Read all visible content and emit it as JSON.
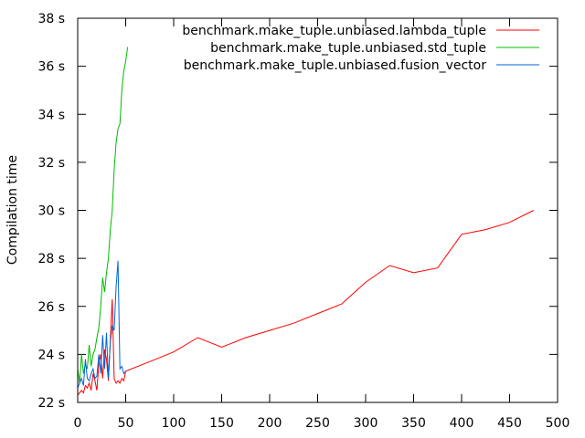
{
  "chart_data": {
    "type": "line",
    "title": "",
    "xlabel": "",
    "ylabel": "Compilation time",
    "xlim": [
      0,
      500
    ],
    "ylim": [
      22,
      38
    ],
    "xticks": [
      0,
      50,
      100,
      150,
      200,
      250,
      300,
      350,
      400,
      450,
      500
    ],
    "yticks": [
      22,
      24,
      26,
      28,
      30,
      32,
      34,
      36,
      38
    ],
    "xtick_labels": [
      "0",
      "50",
      "100",
      "150",
      "200",
      "250",
      "300",
      "350",
      "400",
      "450",
      "500"
    ],
    "ytick_labels": [
      "22 s",
      "24 s",
      "26 s",
      "28 s",
      "30 s",
      "32 s",
      "34 s",
      "36 s",
      "38 s"
    ],
    "grid": false,
    "legend_position": "top-right",
    "series": [
      {
        "name": "benchmark.make_tuple.unbiased.lambda_tuple",
        "color": "#ff0000",
        "x": [
          0,
          2,
          4,
          6,
          8,
          10,
          12,
          14,
          16,
          18,
          20,
          22,
          24,
          26,
          28,
          30,
          32,
          34,
          36,
          38,
          40,
          42,
          44,
          46,
          48,
          50,
          75,
          100,
          125,
          150,
          175,
          200,
          225,
          250,
          275,
          300,
          325,
          350,
          375,
          400,
          425,
          450,
          475
        ],
        "y": [
          22.3,
          22.4,
          22.5,
          22.4,
          22.7,
          22.6,
          22.8,
          22.5,
          23.2,
          22.9,
          22.5,
          23.6,
          24.0,
          23.0,
          24.2,
          23.8,
          22.9,
          24.6,
          26.3,
          23.0,
          22.8,
          22.9,
          22.8,
          23.0,
          22.9,
          23.3,
          23.7,
          24.1,
          24.7,
          24.3,
          24.7,
          25.0,
          25.3,
          25.7,
          26.1,
          27.0,
          27.7,
          27.4,
          27.6,
          29.0,
          29.2,
          29.5,
          30.0
        ]
      },
      {
        "name": "benchmark.make_tuple.unbiased.std_tuple",
        "color": "#00bb00",
        "x": [
          0,
          2,
          4,
          6,
          8,
          10,
          12,
          14,
          16,
          18,
          20,
          22,
          24,
          26,
          28,
          30,
          32,
          34,
          36,
          38,
          40,
          42,
          44,
          46,
          48,
          50,
          52
        ],
        "y": [
          23.4,
          22.8,
          24.0,
          23.2,
          23.6,
          23.4,
          24.4,
          23.5,
          24.0,
          24.2,
          24.7,
          25.1,
          26.0,
          27.2,
          26.6,
          27.4,
          28.0,
          29.2,
          30.0,
          31.7,
          32.8,
          33.4,
          33.6,
          35.0,
          35.8,
          36.2,
          36.8
        ]
      },
      {
        "name": "benchmark.make_tuple.unbiased.fusion_vector",
        "color": "#0066dd",
        "x": [
          0,
          2,
          4,
          6,
          8,
          10,
          12,
          14,
          16,
          18,
          20,
          22,
          24,
          26,
          28,
          30,
          32,
          34,
          36,
          38,
          40,
          42,
          44,
          46,
          48,
          50
        ],
        "y": [
          22.6,
          22.8,
          23.0,
          22.7,
          23.8,
          23.0,
          22.9,
          23.2,
          23.4,
          23.0,
          23.1,
          24.0,
          23.2,
          24.8,
          23.4,
          24.9,
          23.0,
          24.5,
          25.2,
          25.0,
          26.8,
          27.9,
          23.4,
          23.5,
          23.2,
          23.3
        ]
      }
    ]
  }
}
